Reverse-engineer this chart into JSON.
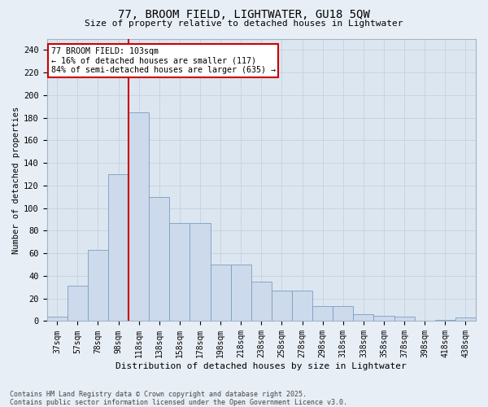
{
  "title1": "77, BROOM FIELD, LIGHTWATER, GU18 5QW",
  "title2": "Size of property relative to detached houses in Lightwater",
  "xlabel": "Distribution of detached houses by size in Lightwater",
  "ylabel": "Number of detached properties",
  "categories": [
    "37sqm",
    "57sqm",
    "78sqm",
    "98sqm",
    "118sqm",
    "138sqm",
    "158sqm",
    "178sqm",
    "198sqm",
    "218sqm",
    "238sqm",
    "258sqm",
    "278sqm",
    "298sqm",
    "318sqm",
    "338sqm",
    "358sqm",
    "378sqm",
    "398sqm",
    "418sqm",
    "438sqm"
  ],
  "bar_values": [
    4,
    31,
    63,
    130,
    185,
    110,
    87,
    87,
    50,
    50,
    35,
    27,
    27,
    13,
    13,
    6,
    5,
    4,
    0,
    1,
    3
  ],
  "bar_color": "#cddaeb",
  "bar_edge_color": "#7a9ec0",
  "annotation_line1": "77 BROOM FIELD: 103sqm",
  "annotation_line2": "← 16% of detached houses are smaller (117)",
  "annotation_line3": "84% of semi-detached houses are larger (635) →",
  "vline_color": "#cc0000",
  "box_color": "#cc0000",
  "grid_color": "#c8d4e0",
  "background_color": "#dce6f0",
  "fig_background": "#e8eef5",
  "ylim": [
    0,
    250
  ],
  "yticks": [
    0,
    20,
    40,
    60,
    80,
    100,
    120,
    140,
    160,
    180,
    200,
    220,
    240
  ],
  "footer": "Contains HM Land Registry data © Crown copyright and database right 2025.\nContains public sector information licensed under the Open Government Licence v3.0."
}
